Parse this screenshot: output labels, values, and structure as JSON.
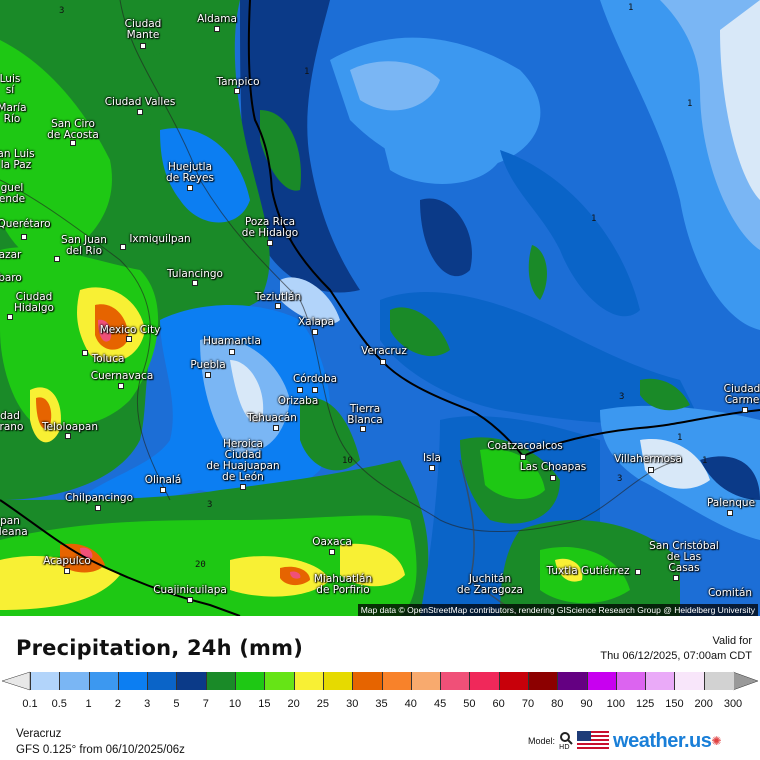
{
  "map": {
    "region": "Veracruz",
    "attribution": "Map data © OpenStreetMap contributors, rendering GIScience Research Group @ Heidelberg University",
    "cities": [
      "Ciudad\nMante",
      "Aldama",
      "Tampico",
      "Ciudad Valles",
      "San Ciro\nde Acosta",
      "Huejutla\nde Reyes",
      "Poza Rica\nde Hidalgo",
      "Ixmiquilpan",
      "San Juan\ndel Rio",
      "Querétaro",
      "Tulancingo",
      "Teziutlán",
      "Ciudad\nHidalgo",
      "Mexico City",
      "Toluca",
      "Xalapa",
      "Huamantla",
      "Puebla",
      "Veracruz",
      "Cuernavaca",
      "Córdoba",
      "Orizaba",
      "Tierra\nBlanca",
      "Tehuacán",
      "Teloloapan",
      "Heroica\nCiudad\nde Huajuapan\nde León",
      "Olinalá",
      "Chilpancingo",
      "Acapulco",
      "Oaxaca",
      "Cuajinicuilapa",
      "Miahuatlán\nde Porfirio",
      "Isla",
      "Coatzacoalcos",
      "Las Choapas",
      "Villahermosa",
      "Ciudad\nCarme",
      "Palenque",
      "San Cristóbal\nde Las\nCasas",
      "Tuxtla Gutiérrez",
      "Juchitán\nde Zaragoza",
      "Luis\nsí",
      "María\nRío",
      "an Luis\nla Paz",
      "guel\nende",
      "azar",
      "baro",
      "dad\nirano",
      "pan\naleana",
      "Comitán"
    ],
    "contour_labels": [
      "1",
      "1",
      "1",
      "1",
      "3",
      "3",
      "1",
      "1",
      "3",
      "10",
      "20",
      "3"
    ]
  },
  "header": {
    "title": "Precipitation, 24h (mm)",
    "valid_label": "Valid for",
    "valid_time": "Thu 06/12/2025, 07:00am CDT"
  },
  "legend": {
    "ticks": [
      "0.1",
      "0.5",
      "1",
      "2",
      "3",
      "5",
      "7",
      "10",
      "15",
      "20",
      "25",
      "30",
      "35",
      "40",
      "45",
      "50",
      "60",
      "70",
      "80",
      "90",
      "100",
      "125",
      "150",
      "200",
      "300"
    ],
    "colors": [
      "#b2d4fa",
      "#7ab6f4",
      "#3c98f0",
      "#0c7ef2",
      "#0a64c8",
      "#0b3a88",
      "#1a8a28",
      "#1ec814",
      "#66e416",
      "#f8f034",
      "#e6da00",
      "#e66400",
      "#f8822a",
      "#f8aa6e",
      "#f05078",
      "#f0285a",
      "#c8000a",
      "#8c0000",
      "#640082",
      "#c800f0",
      "#dc64f0",
      "#eaaaf8",
      "#f8e6fa",
      "#d2d2d2"
    ],
    "under_color": "#e8e8e8",
    "over_color": "#999999"
  },
  "footer": {
    "location": "Veracruz",
    "model_run": "GFS 0.125° from  06/10/2025/06z",
    "model_label": "Model:",
    "hd_label": "HD",
    "brand": "weather.us"
  }
}
